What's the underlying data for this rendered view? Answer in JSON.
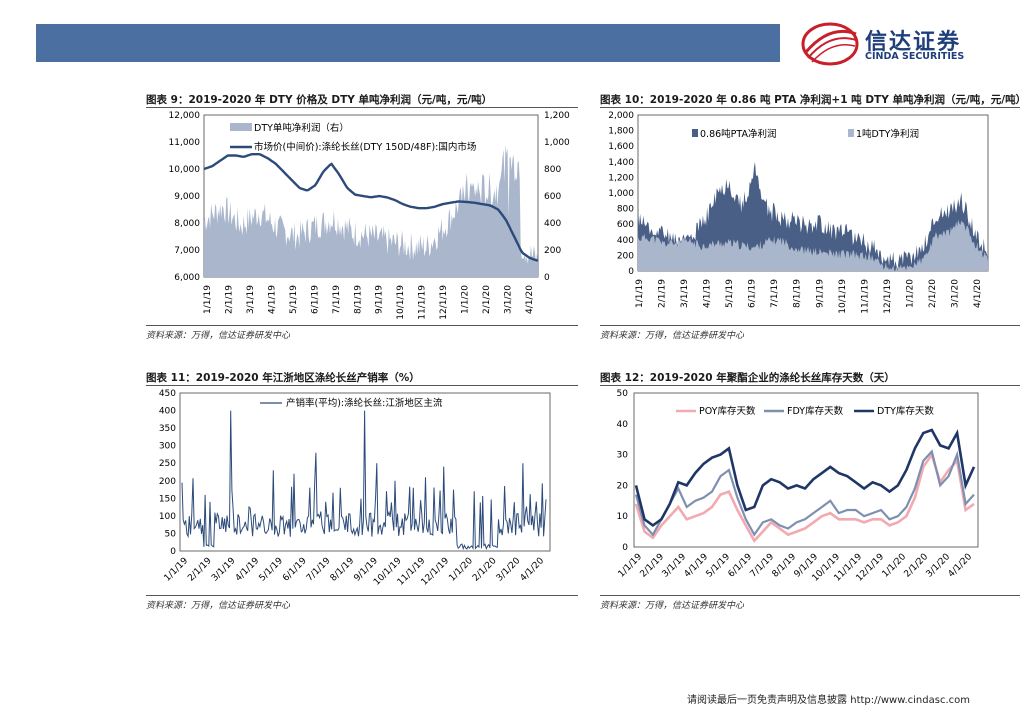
{
  "header": {
    "logo_cn": "信达证券",
    "logo_en": "CINDA SECURITIES"
  },
  "figures": [
    {
      "title": "图表 9：2019-2020 年 DTY 价格及 DTY 单吨净利润（元/吨，元/吨）",
      "source": "资料来源：万得，信达证券研发中心",
      "chart_data": {
        "type": "area",
        "series": [
          {
            "name": "DTY单吨净利润（右）",
            "axis": "right",
            "style": "area",
            "color": "#a9b6cc"
          },
          {
            "name": "市场价(中间价):涤纶长丝(DTY 150D/48F):国内市场",
            "axis": "left",
            "style": "line",
            "color": "#2c4b7a",
            "values": [
              10000,
              10100,
              10300,
              10500,
              10500,
              10450,
              10550,
              10550,
              10400,
              10200,
              9900,
              9600,
              9300,
              9200,
              9400,
              9900,
              10200,
              9800,
              9300,
              9050,
              9000,
              8950,
              9000,
              8950,
              8850,
              8700,
              8600,
              8550,
              8550,
              8600,
              8700,
              8750,
              8800,
              8780,
              8750,
              8700,
              8650,
              8500,
              8100,
              7500,
              6900,
              6700,
              6600
            ]
          }
        ],
        "yleft": {
          "min": 6000,
          "max": 12000,
          "ticks": [
            "6,000",
            "7,000",
            "8,000",
            "9,000",
            "10,000",
            "11,000",
            "12,000"
          ]
        },
        "yright": {
          "min": 0,
          "max": 1200,
          "ticks": [
            "0",
            "200",
            "400",
            "600",
            "800",
            "1,000",
            "1,200"
          ]
        },
        "xticks": [
          "1/1/19",
          "2/1/19",
          "3/1/19",
          "4/1/19",
          "5/1/19",
          "6/1/19",
          "7/1/19",
          "8/1/19",
          "9/1/19",
          "10/1/19",
          "11/1/19",
          "12/1/19",
          "1/1/20",
          "2/1/20",
          "3/1/20",
          "4/1/20"
        ]
      }
    },
    {
      "title": "图表 10：2019-2020 年 0.86 吨 PTA 净利润+1 吨 DTY 单吨净利润（元/吨，元/吨）",
      "source": "资料来源：万得，信达证券研发中心",
      "chart_data": {
        "type": "area",
        "series": [
          {
            "name": "0.86吨PTA净利润",
            "color": "#4a5f86"
          },
          {
            "name": "1吨DTY净利润",
            "color": "#a9b6cc"
          }
        ],
        "ylim": [
          0,
          2000
        ],
        "yticks": [
          "0",
          "200",
          "400",
          "600",
          "800",
          "1,000",
          "1,200",
          "1,400",
          "1,600",
          "1,800",
          "2,000"
        ],
        "xticks": [
          "1/1/19",
          "2/1/19",
          "3/1/19",
          "4/1/19",
          "5/1/19",
          "6/1/19",
          "7/1/19",
          "8/1/19",
          "9/1/19",
          "10/1/19",
          "11/1/19",
          "12/1/19",
          "1/1/20",
          "2/1/20",
          "3/1/20",
          "4/1/20"
        ]
      }
    },
    {
      "title": "图表 11：2019-2020 年江浙地区涤纶长丝产销率（%）",
      "source": "资料来源：万得，信达证券研发中心",
      "chart_data": {
        "type": "line",
        "series": [
          {
            "name": "产销率(平均):涤纶长丝:江浙地区主流",
            "color": "#2c4b7a"
          }
        ],
        "ylim": [
          0,
          450
        ],
        "yticks": [
          "0",
          "50",
          "100",
          "150",
          "200",
          "250",
          "300",
          "350",
          "400",
          "450"
        ],
        "xticks": [
          "1/1/19",
          "2/1/19",
          "3/1/19",
          "4/1/19",
          "5/1/19",
          "6/1/19",
          "7/1/19",
          "8/1/19",
          "9/1/19",
          "10/1/19",
          "11/1/19",
          "12/1/19",
          "1/1/20",
          "2/1/20",
          "3/1/20",
          "4/1/20"
        ]
      }
    },
    {
      "title": "图表 12：2019-2020 年聚酯企业的涤纶长丝库存天数（天）",
      "source": "资料来源：万得，信达证券研发中心",
      "chart_data": {
        "type": "line",
        "series": [
          {
            "name": "POY库存天数",
            "color": "#f2a9b0",
            "values": [
              14,
              5,
              3,
              7,
              10,
              13,
              9,
              10,
              11,
              13,
              17,
              18,
              12,
              7,
              2,
              5,
              8,
              6,
              4,
              5,
              6,
              8,
              10,
              11,
              9,
              9,
              9,
              8,
              9,
              9,
              7,
              8,
              10,
              16,
              26,
              30,
              21,
              25,
              28,
              12,
              14
            ]
          },
          {
            "name": "FDY库存天数",
            "color": "#7f8fb0",
            "values": [
              17,
              7,
              4,
              9,
              14,
              19,
              13,
              15,
              16,
              18,
              23,
              25,
              16,
              9,
              4,
              8,
              9,
              7,
              6,
              8,
              9,
              11,
              13,
              15,
              11,
              12,
              12,
              10,
              11,
              12,
              9,
              10,
              13,
              19,
              28,
              31,
              20,
              23,
              30,
              14,
              17
            ]
          },
          {
            "name": "DTY库存天数",
            "color": "#1f3667",
            "values": [
              20,
              9,
              7,
              9,
              14,
              21,
              20,
              24,
              27,
              29,
              30,
              32,
              20,
              12,
              13,
              20,
              22,
              21,
              19,
              20,
              19,
              22,
              24,
              26,
              24,
              23,
              21,
              19,
              21,
              20,
              18,
              20,
              25,
              32,
              37,
              38,
              33,
              32,
              37,
              20,
              26
            ]
          }
        ],
        "ylim": [
          0,
          50
        ],
        "yticks": [
          "0",
          "10",
          "20",
          "30",
          "40",
          "50"
        ],
        "xticks": [
          "1/1/19",
          "2/1/19",
          "3/1/19",
          "4/1/19",
          "5/1/19",
          "6/1/19",
          "7/1/19",
          "8/1/19",
          "9/1/19",
          "10/1/19",
          "11/1/19",
          "12/1/19",
          "1/1/20",
          "2/1/20",
          "3/1/20",
          "4/1/20"
        ]
      }
    }
  ],
  "footer": {
    "text": "请阅读最后一页免责声明及信息披露  http://www.cindasc.com"
  }
}
